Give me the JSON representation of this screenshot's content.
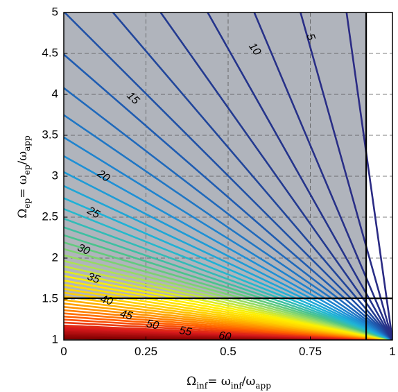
{
  "chart_data": {
    "type": "line",
    "x_formula": "Omega_inf = omega_inf / omega_app",
    "y_formula": "Omega_ep = omega_ep / omega_app",
    "xlim": [
      0,
      1
    ],
    "ylim": [
      1,
      5
    ],
    "x_ticks": [
      "0",
      "0.25",
      "0.5",
      "0.75",
      "1"
    ],
    "y_ticks": [
      "1",
      "1.5",
      "2",
      "2.5",
      "3",
      "3.5",
      "4",
      "4.5",
      "5"
    ],
    "grid": true,
    "grid_style": "dashed",
    "feasible_region": {
      "x_max": 0.92,
      "y_min": 1.5,
      "fill": "#b0b4bc"
    },
    "boundary_lines": {
      "x": 0.92,
      "y": 1.51
    },
    "contour_description": "contour lines through (1,1) with y = 1 + (1 - x) * tan(angle)",
    "contour_angles_deg": [
      1,
      2,
      3,
      4,
      5,
      6,
      7,
      8,
      9,
      10,
      12,
      14,
      16,
      18,
      20,
      22,
      24,
      26,
      28,
      30,
      32,
      34,
      36,
      38,
      40,
      42,
      44,
      46,
      48,
      50,
      52,
      54,
      56,
      58,
      60,
      62,
      64,
      66,
      68,
      70,
      72,
      74,
      76,
      78,
      80,
      82,
      84,
      86,
      88
    ],
    "contour_labels": [
      {
        "text": "5",
        "angle": 85,
        "x": 0.75,
        "y": 4.7
      },
      {
        "text": "10",
        "angle": 80,
        "x": 0.58,
        "y": 4.55
      },
      {
        "text": "15",
        "angle": 75,
        "x": 0.21,
        "y": 3.95
      },
      {
        "text": "20",
        "angle": 70,
        "x": 0.12,
        "y": 3.0
      },
      {
        "text": "25",
        "angle": 65,
        "x": 0.09,
        "y": 2.55
      },
      {
        "text": "30",
        "angle": 60,
        "x": 0.06,
        "y": 2.1
      },
      {
        "text": "35",
        "angle": 55,
        "x": 0.09,
        "y": 1.75
      },
      {
        "text": "40",
        "angle": 50,
        "x": 0.13,
        "y": 1.48
      },
      {
        "text": "45",
        "angle": 45,
        "x": 0.19,
        "y": 1.3
      },
      {
        "text": "50",
        "angle": 40,
        "x": 0.27,
        "y": 1.18
      },
      {
        "text": "55",
        "angle": 35,
        "x": 0.37,
        "y": 1.1
      },
      {
        "text": "60",
        "angle": 30,
        "x": 0.49,
        "y": 1.04
      }
    ],
    "colormap": [
      "#7f0000",
      "#d7191c",
      "#ff5a00",
      "#ff9900",
      "#ffd000",
      "#fff200",
      "#a8e05a",
      "#4cc38a",
      "#1fb6d6",
      "#1e8fd6",
      "#1f5fb4",
      "#23368c",
      "#2b2b84"
    ]
  }
}
